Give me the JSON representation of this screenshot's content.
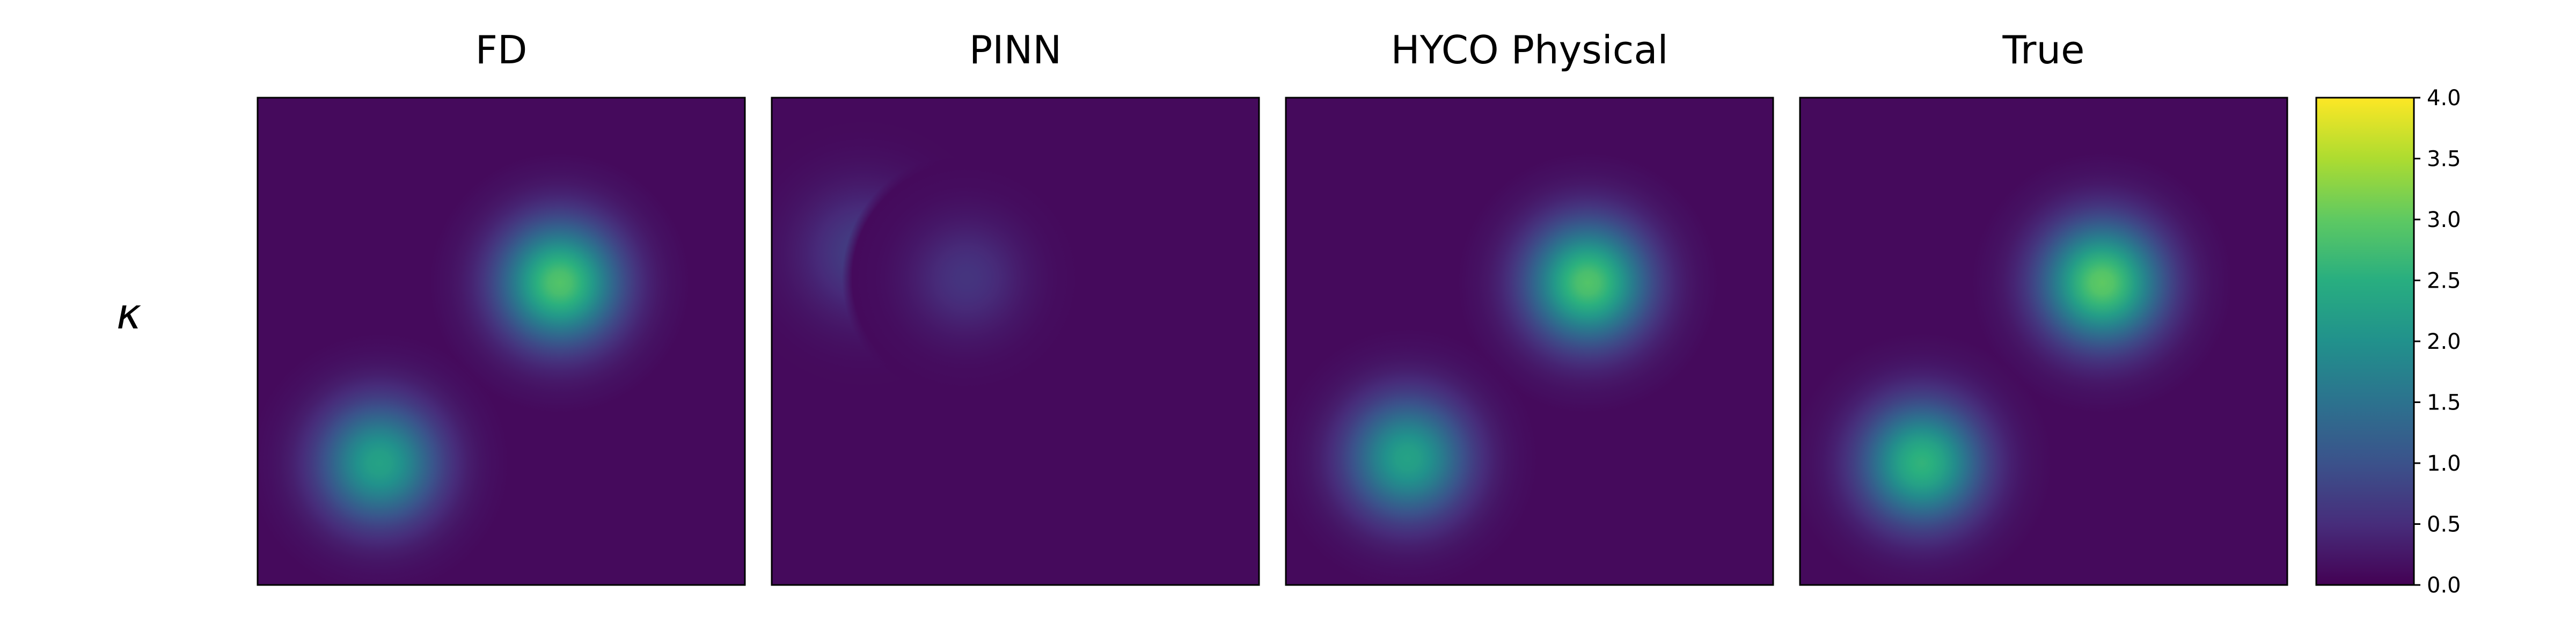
{
  "figure": {
    "row_label": "κ"
  },
  "chart_data": {
    "type": "heatmap",
    "row_label": "κ",
    "background_value": 0.1,
    "colormap": "viridis",
    "colorbar": {
      "vmin": 0.0,
      "vmax": 4.0,
      "ticks": [
        "0.0",
        "0.5",
        "1.0",
        "1.5",
        "2.0",
        "2.5",
        "3.0",
        "3.5",
        "4.0"
      ]
    },
    "panels": [
      {
        "title": "FD",
        "blobs": [
          {
            "cx": 0.62,
            "cy": 0.62,
            "peak": 2.9,
            "sigma": 0.085
          },
          {
            "cx": 0.25,
            "cy": 0.25,
            "peak": 2.3,
            "sigma": 0.085
          }
        ]
      },
      {
        "title": "PINN",
        "blobs": [
          {
            "cx": 0.19,
            "cy": 0.68,
            "peak": 0.75,
            "sigma": 0.09
          },
          {
            "cx": 0.4,
            "cy": 0.63,
            "peak": 0.6,
            "sigma": 0.08
          }
        ]
      },
      {
        "title": "HYCO Physical",
        "blobs": [
          {
            "cx": 0.62,
            "cy": 0.62,
            "peak": 2.9,
            "sigma": 0.085
          },
          {
            "cx": 0.25,
            "cy": 0.26,
            "peak": 2.3,
            "sigma": 0.085
          }
        ]
      },
      {
        "title": "True",
        "blobs": [
          {
            "cx": 0.62,
            "cy": 0.62,
            "peak": 3.0,
            "sigma": 0.085
          },
          {
            "cx": 0.25,
            "cy": 0.25,
            "peak": 2.6,
            "sigma": 0.085
          }
        ]
      }
    ]
  }
}
